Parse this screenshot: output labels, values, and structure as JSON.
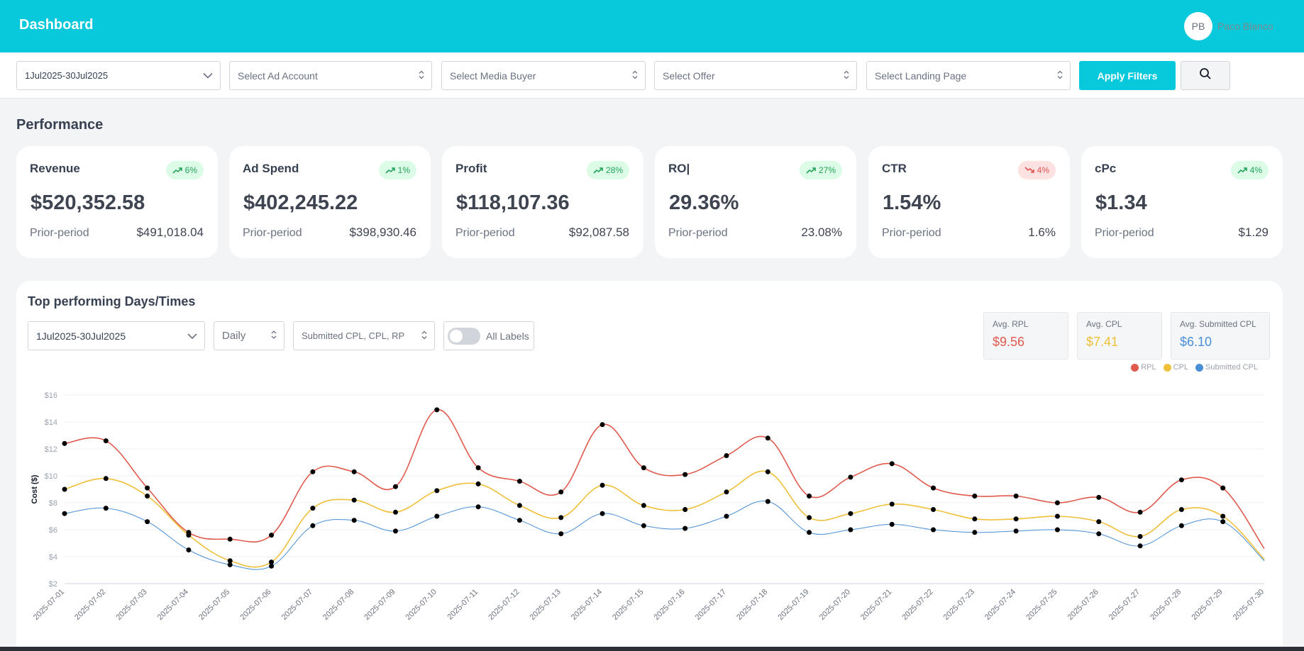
{
  "header": {
    "title": "Dashboard",
    "avatar_initials": "PB",
    "user_name": "Paco Blanco"
  },
  "filters": {
    "date_range": "1Jul2025-30Jul2025",
    "ad_account_placeholder": "Select Ad Account",
    "media_buyer_placeholder": "Select Media Buyer",
    "offer_placeholder": "Select Offer",
    "landing_page_placeholder": "Select Landing Page",
    "apply_label": "Apply Filters"
  },
  "performance": {
    "title": "Performance",
    "prior_label": "Prior-period",
    "cards": [
      {
        "title": "Revenue",
        "value": "$520,352.58",
        "change": "6%",
        "trend": "up",
        "prior": "$491,018.04"
      },
      {
        "title": "Ad Spend",
        "value": "$402,245.22",
        "change": "1%",
        "trend": "up",
        "prior": "$398,930.46"
      },
      {
        "title": "Profit",
        "value": "$118,107.36",
        "change": "28%",
        "trend": "up",
        "prior": "$92,087.58"
      },
      {
        "title": "RO|",
        "value": "29.36%",
        "change": "27%",
        "trend": "up",
        "prior": "23.08%"
      },
      {
        "title": "CTR",
        "value": "1.54%",
        "change": "4%",
        "trend": "down",
        "prior": "1.6%"
      },
      {
        "title": "cPc",
        "value": "$1.34",
        "change": "4%",
        "trend": "up",
        "prior": "$1.29"
      }
    ]
  },
  "top_performing": {
    "title": "Top performing Days/Times",
    "date_range": "1Jul2025-30Jul2025",
    "granularity": "Daily",
    "metrics": "Submitted CPL, CPL, RP",
    "toggle_label": "All Labels",
    "stats": [
      {
        "label": "Avg. RPL",
        "value": "$9.56",
        "color": "#e05a4e"
      },
      {
        "label": "Avg. CPL",
        "value": "$7.41",
        "color": "#efc03a"
      },
      {
        "label": "Avg. Submitted CPL",
        "value": "$6.10",
        "color": "#4a8fd6"
      }
    ]
  },
  "chart_data": {
    "type": "line",
    "title": "",
    "xlabel": "",
    "ylabel": "Cost ($)",
    "ylim": [
      2,
      16
    ],
    "yticks": [
      "$2",
      "$4",
      "$6",
      "$8",
      "$10",
      "$12",
      "$14",
      "$16"
    ],
    "grid": true,
    "legend": "top-right",
    "categories": [
      "2025-07-01",
      "2025-07-02",
      "2025-07-03",
      "2025-07-04",
      "2025-07-05",
      "2025-07-06",
      "2025-07-07",
      "2025-07-08",
      "2025-07-09",
      "2025-07-10",
      "2025-07-11",
      "2025-07-12",
      "2025-07-13",
      "2025-07-14",
      "2025-07-15",
      "2025-07-16",
      "2025-07-17",
      "2025-07-18",
      "2025-07-19",
      "2025-07-20",
      "2025-07-21",
      "2025-07-22",
      "2025-07-23",
      "2025-07-24",
      "2025-07-25",
      "2025-07-26",
      "2025-07-27",
      "2025-07-28",
      "2025-07-29",
      "2025-07-30"
    ],
    "series": [
      {
        "name": "RPL",
        "color": "#e05a4e",
        "values": [
          12.4,
          12.6,
          9.1,
          5.8,
          5.3,
          5.6,
          10.3,
          10.3,
          9.2,
          14.9,
          10.6,
          9.6,
          8.8,
          13.8,
          10.6,
          10.1,
          11.5,
          12.8,
          8.5,
          9.9,
          10.9,
          9.1,
          8.5,
          8.5,
          8.0,
          8.4,
          7.3,
          9.7,
          9.1,
          4.6
        ]
      },
      {
        "name": "CPL",
        "color": "#efc03a",
        "values": [
          9.0,
          9.8,
          8.5,
          5.6,
          3.7,
          3.6,
          7.6,
          8.2,
          7.3,
          8.9,
          9.4,
          7.8,
          6.9,
          9.3,
          7.8,
          7.5,
          8.8,
          10.3,
          6.9,
          7.2,
          7.9,
          7.5,
          6.8,
          6.8,
          7.0,
          6.6,
          5.5,
          7.5,
          7.0,
          3.8
        ]
      },
      {
        "name": "Submitted CPL",
        "color": "#4a8fd6",
        "values": [
          7.2,
          7.6,
          6.6,
          4.5,
          3.4,
          3.3,
          6.3,
          6.7,
          5.9,
          7.0,
          7.7,
          6.7,
          5.7,
          7.2,
          6.3,
          6.1,
          7.0,
          8.1,
          5.8,
          6.0,
          6.4,
          6.0,
          5.8,
          5.9,
          6.0,
          5.7,
          4.8,
          6.3,
          6.6,
          3.7
        ]
      }
    ]
  }
}
